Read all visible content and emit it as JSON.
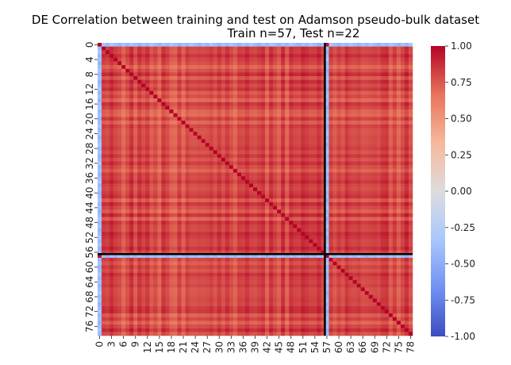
{
  "chart_data": {
    "type": "heatmap",
    "title": "DE Correlation between training and test on Adamson pseudo-bulk dataset",
    "subtitle": "Train n=57, Test n=22",
    "xlabel": "",
    "ylabel": "",
    "n": 79,
    "train_n": 57,
    "test_n": 22,
    "split_index": 57,
    "x_tick_labels": [
      "0",
      "3",
      "6",
      "9",
      "12",
      "15",
      "18",
      "21",
      "24",
      "27",
      "30",
      "33",
      "36",
      "39",
      "42",
      "45",
      "48",
      "51",
      "54",
      "57",
      "60",
      "63",
      "66",
      "69",
      "72",
      "75",
      "78"
    ],
    "y_tick_labels": [
      "0",
      "4",
      "8",
      "12",
      "16",
      "20",
      "24",
      "28",
      "32",
      "36",
      "40",
      "44",
      "48",
      "52",
      "56",
      "60",
      "64",
      "68",
      "72",
      "76"
    ],
    "colorbar": {
      "min": -1.0,
      "max": 1.0,
      "ticks": [
        "1.00",
        "0.75",
        "0.50",
        "0.25",
        "0.00",
        "-0.25",
        "-0.50",
        "-0.75",
        "-1.00"
      ],
      "colormap": "coolwarm",
      "colors": [
        "#3b4cc0",
        "#6f92f3",
        "#aac7fd",
        "#dddcdc",
        "#f7b89c",
        "#e7745b",
        "#b40426"
      ]
    },
    "value_summary": {
      "diagonal": 1.0,
      "outlier_indices": [
        0,
        57
      ],
      "outlier_vs_others": -0.45,
      "outlier_vs_outlier": 0.95,
      "typical_range": [
        0.55,
        0.92
      ]
    },
    "divider_color": "#000000"
  }
}
